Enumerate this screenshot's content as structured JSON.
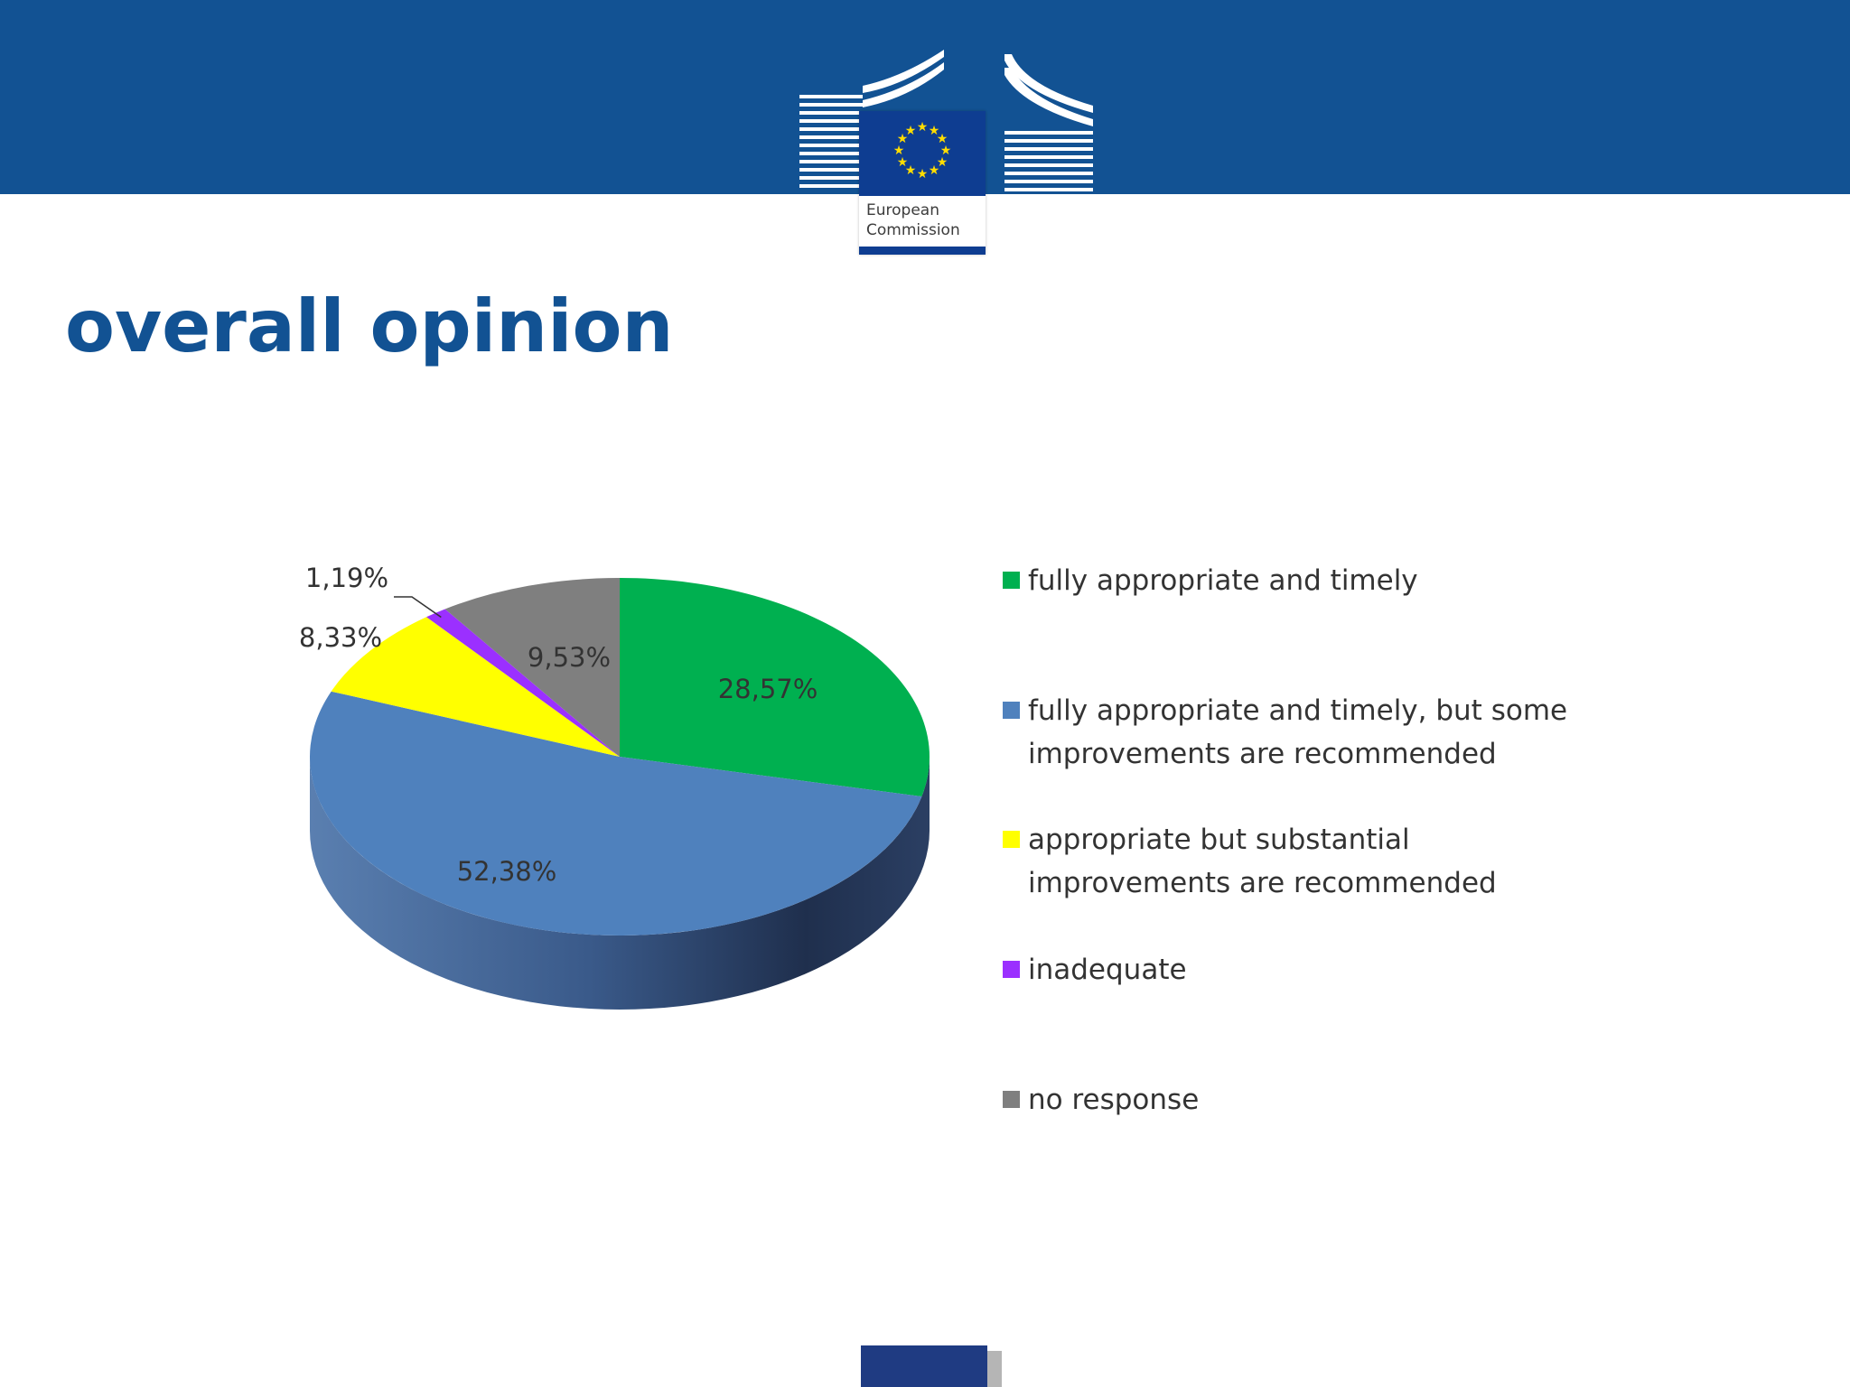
{
  "header": {
    "logo_text_line1": "European",
    "logo_text_line2": "Commission",
    "band_color": "#125293"
  },
  "page_title": "overall opinion",
  "chart_data": {
    "type": "pie",
    "title": "",
    "slices": [
      {
        "label": "fully appropriate and timely",
        "value": 28.57,
        "display": "28,57%",
        "color": "#00b050"
      },
      {
        "label": "fully appropriate and timely, but some improvements are recommended",
        "value": 52.38,
        "display": "52,38%",
        "color": "#4f81bd"
      },
      {
        "label": "appropriate but substantial improvements are recommended",
        "value": 8.33,
        "display": "8,33%",
        "color": "#ffff00"
      },
      {
        "label": "inadequate",
        "value": 1.19,
        "display": "1,19%",
        "color": "#9b30ff"
      },
      {
        "label": "no response",
        "value": 9.53,
        "display": "9,53%",
        "color": "#7f7f7f"
      }
    ],
    "legend": {
      "placement": "right",
      "entries": [
        {
          "lines": [
            "fully appropriate and timely"
          ],
          "color": "#00b050"
        },
        {
          "lines": [
            "fully appropriate and timely, but some",
            "improvements are recommended"
          ],
          "color": "#4f81bd"
        },
        {
          "lines": [
            "appropriate but substantial",
            "improvements are recommended"
          ],
          "color": "#ffff00"
        },
        {
          "lines": [
            "inadequate"
          ],
          "color": "#9b30ff"
        },
        {
          "lines": [
            "no response"
          ],
          "color": "#7f7f7f"
        }
      ]
    }
  }
}
